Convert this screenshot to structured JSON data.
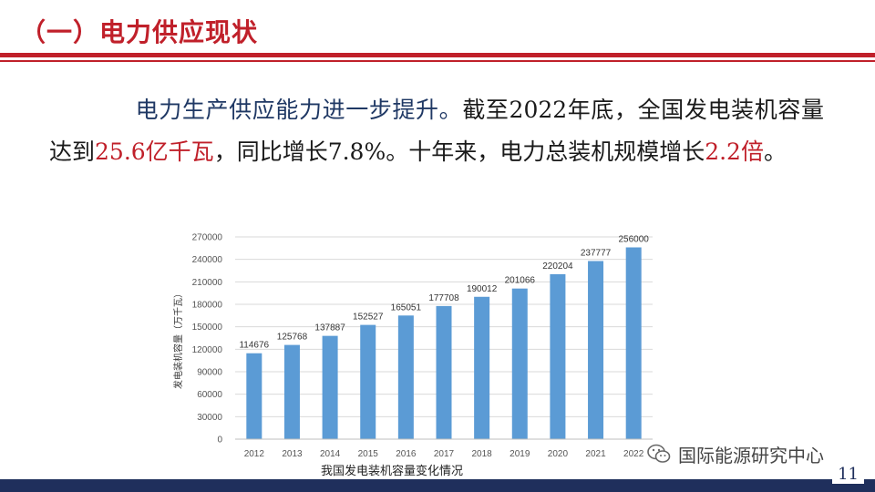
{
  "slide": {
    "title": "（一）电力供应现状",
    "paragraph": {
      "lead": "电力生产供应能力进一步提升。",
      "part1": "截至2022年底，全国发电装机容量达到",
      "hl1": "25.6亿千瓦",
      "part2": "，同比增长7.8%。十年来，电力总装机规模增长",
      "hl2": "2.2倍",
      "part3": "。"
    },
    "caption": "我国发电装机容量变化情况",
    "watermark": "国际能源研究中心",
    "page_number": "11",
    "colors": {
      "title": "#c0202a",
      "bar": "#5b9bd5",
      "footer": "#1f2f5c"
    }
  },
  "chart_data": {
    "type": "bar",
    "categories": [
      "2012",
      "2013",
      "2014",
      "2015",
      "2016",
      "2017",
      "2018",
      "2019",
      "2020",
      "2021",
      "2022"
    ],
    "values": [
      114676,
      125768,
      137887,
      152527,
      165051,
      177708,
      190012,
      201066,
      220204,
      237777,
      256000
    ],
    "ylabel": "发电装机容量（万千瓦）",
    "ylim": [
      0,
      270000
    ],
    "yticks": [
      0,
      30000,
      60000,
      90000,
      120000,
      150000,
      180000,
      210000,
      240000,
      270000
    ],
    "grid": true,
    "legend": "none"
  }
}
